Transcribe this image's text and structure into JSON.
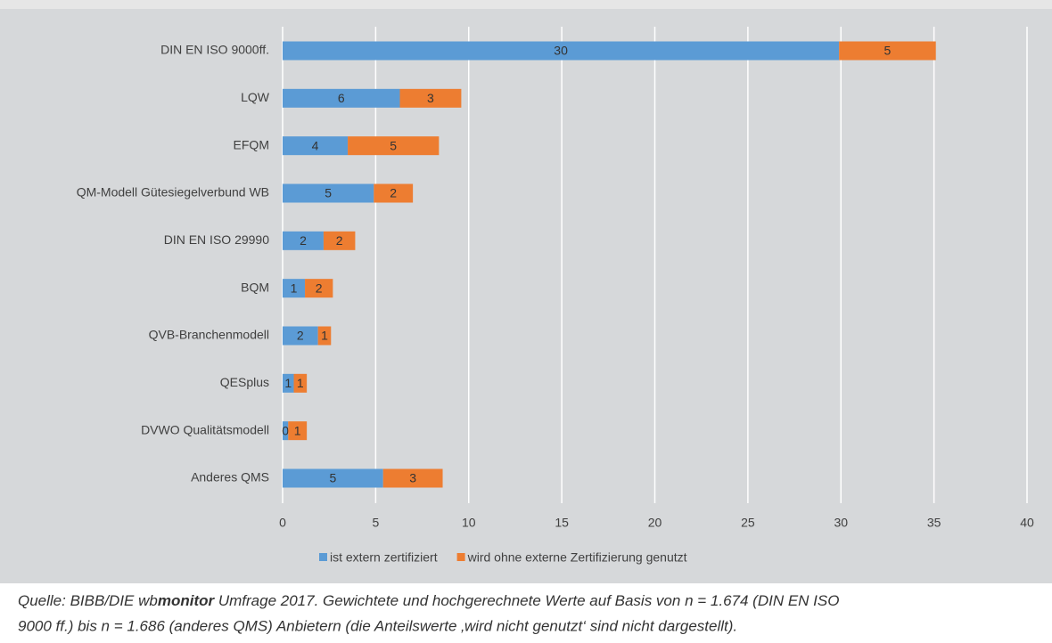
{
  "chart_data": {
    "type": "stacked-bar-horizontal",
    "categories": [
      "DIN EN ISO 9000ff.",
      "LQW",
      "EFQM",
      "QM-Modell Gütesiegelverbund WB",
      "DIN EN ISO 29990",
      "BQM",
      "QVB-Branchenmodell",
      "QESplus",
      "DVWO Qualitätsmodell",
      "Anderes QMS"
    ],
    "series": [
      {
        "name": "ist extern zertifiziert",
        "color": "#5b9bd5",
        "values": [
          29.9,
          6.3,
          3.5,
          4.9,
          2.2,
          1.2,
          1.9,
          0.6,
          0.3,
          5.4
        ],
        "value_labels": [
          "30",
          "6",
          "4",
          "5",
          "2",
          "1",
          "2",
          "1",
          "0",
          "5"
        ]
      },
      {
        "name": "wird ohne externe Zertifizierung genutzt",
        "color": "#ed7d31",
        "values": [
          5.2,
          3.3,
          4.9,
          2.1,
          1.7,
          1.5,
          0.7,
          0.7,
          1.0,
          3.2
        ],
        "value_labels": [
          "5",
          "3",
          "5",
          "2",
          "2",
          "2",
          "1",
          "1",
          "1",
          "3"
        ]
      }
    ],
    "xlim": [
      0,
      40
    ],
    "xticks": [
      0,
      5,
      10,
      15,
      20,
      25,
      30,
      35,
      40
    ],
    "grid": true,
    "legend": "bottom"
  },
  "source": {
    "prefix": "Quelle: BIBB/DIE wb",
    "bold": "monitor",
    "line1": " Umfrage 2017. Gewichtete und hochgerechnete Werte auf Basis von n = 1.674 (DIN EN ISO",
    "line2": "9000 ff.) bis n = 1.686 (anderes QMS) Anbietern (die Anteilswerte ‚wird nicht genutzt‘ sind nicht dargestellt)."
  }
}
